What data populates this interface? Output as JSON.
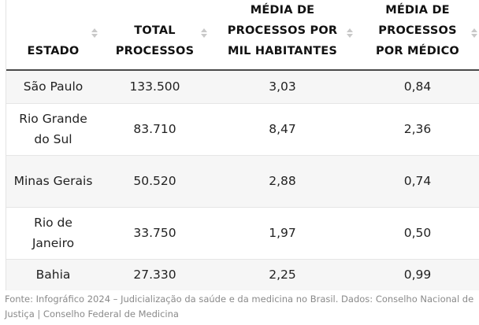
{
  "table": {
    "headers": [
      "ESTADO",
      "TOTAL PROCESSOS",
      "MÉDIA DE PROCESSOS POR MIL HABITANTES",
      "MÉDIA DE PROCESSOS POR MÉDICO"
    ],
    "rows": [
      [
        "São Paulo",
        "133.500",
        "3,03",
        "0,84"
      ],
      [
        "Rio Grande do Sul",
        "83.710",
        "8,47",
        "2,36"
      ],
      [
        "Minas Gerais",
        "50.520",
        "2,88",
        "0,74"
      ],
      [
        "Rio de Janeiro",
        "33.750",
        "1,97",
        "0,50"
      ],
      [
        "Bahia",
        "27.330",
        "2,25",
        "0,99"
      ]
    ]
  },
  "footer": {
    "source": "Fonte: Infográfico 2024 – Judicialização da saúde e da medicina no Brasil. Dados: Conselho Nacional de Justiça | Conselho Federal de Medicina"
  },
  "icons": {
    "sort": "sort-arrows-icon"
  },
  "colors": {
    "header_rule": "#4a4a4a",
    "stripe": "#f6f6f6",
    "sort_icon": "#c9c9c9",
    "source_text": "#8a8a8a"
  }
}
